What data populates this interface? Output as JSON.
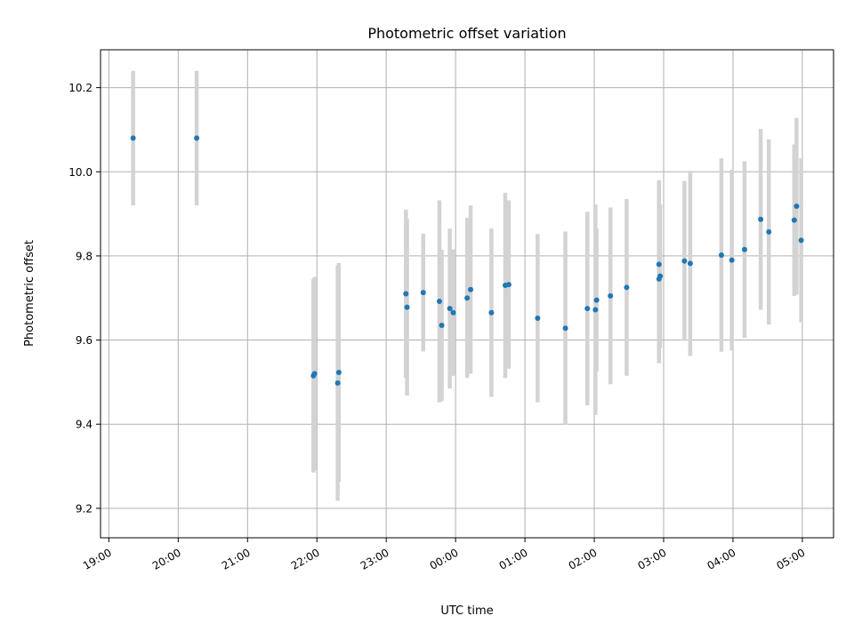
{
  "chart_data": {
    "type": "scatter",
    "title": "Photometric offset variation",
    "xlabel": "UTC time",
    "ylabel": "Photometric offset",
    "x_tick_labels": [
      "19:00",
      "20:00",
      "21:00",
      "22:00",
      "23:00",
      "00:00",
      "01:00",
      "02:00",
      "03:00",
      "04:00",
      "05:00"
    ],
    "y_ticks": [
      "9.2",
      "9.4",
      "9.6",
      "9.8",
      "10.0",
      "10.2"
    ],
    "xlim_hours": [
      18.88,
      29.45
    ],
    "ylim": [
      9.13,
      10.29
    ],
    "grid": true,
    "colors": {
      "point": "#1f77b4",
      "errorbar": "#d3d3d3",
      "grid": "#b0b0b0"
    },
    "series": [
      {
        "points": [
          {
            "t": "19:21",
            "y": 10.08,
            "err": 0.16
          },
          {
            "t": "20:16",
            "y": 10.08,
            "err": 0.16
          },
          {
            "t": "21:57",
            "y": 9.515,
            "err": 0.23
          },
          {
            "t": "21:58",
            "y": 9.52,
            "err": 0.23
          },
          {
            "t": "22:18",
            "y": 9.498,
            "err": 0.28
          },
          {
            "t": "22:19",
            "y": 9.523,
            "err": 0.26
          },
          {
            "t": "23:17",
            "y": 9.71,
            "err": 0.2
          },
          {
            "t": "23:18",
            "y": 9.678,
            "err": 0.21
          },
          {
            "t": "23:32",
            "y": 9.713,
            "err": 0.14
          },
          {
            "t": "23:46",
            "y": 9.692,
            "err": 0.24
          },
          {
            "t": "23:48",
            "y": 9.635,
            "err": 0.18
          },
          {
            "t": "23:55",
            "y": 9.675,
            "err": 0.19
          },
          {
            "t": "23:58",
            "y": 9.665,
            "err": 0.15
          },
          {
            "t": "00:10",
            "y": 9.7,
            "err": 0.19
          },
          {
            "t": "00:13",
            "y": 9.72,
            "err": 0.2
          },
          {
            "t": "00:31",
            "y": 9.665,
            "err": 0.2
          },
          {
            "t": "00:43",
            "y": 9.73,
            "err": 0.22
          },
          {
            "t": "00:46",
            "y": 9.732,
            "err": 0.2
          },
          {
            "t": "01:11",
            "y": 9.652,
            "err": 0.2
          },
          {
            "t": "01:35",
            "y": 9.628,
            "err": 0.23
          },
          {
            "t": "01:54",
            "y": 9.675,
            "err": 0.23
          },
          {
            "t": "02:01",
            "y": 9.672,
            "err": 0.25
          },
          {
            "t": "02:02",
            "y": 9.695,
            "err": 0.17
          },
          {
            "t": "02:14",
            "y": 9.705,
            "err": 0.21
          },
          {
            "t": "02:28",
            "y": 9.725,
            "err": 0.21
          },
          {
            "t": "02:56",
            "y": 9.78,
            "err": 0.2
          },
          {
            "t": "02:56",
            "y": 9.745,
            "err": 0.2
          },
          {
            "t": "02:57",
            "y": 9.752,
            "err": 0.17
          },
          {
            "t": "03:18",
            "y": 9.788,
            "err": 0.19
          },
          {
            "t": "03:23",
            "y": 9.782,
            "err": 0.22
          },
          {
            "t": "03:50",
            "y": 9.802,
            "err": 0.23
          },
          {
            "t": "03:59",
            "y": 9.79,
            "err": 0.215
          },
          {
            "t": "04:10",
            "y": 9.815,
            "err": 0.21
          },
          {
            "t": "04:24",
            "y": 9.887,
            "err": 0.215
          },
          {
            "t": "04:31",
            "y": 9.857,
            "err": 0.22
          },
          {
            "t": "04:53",
            "y": 9.885,
            "err": 0.18
          },
          {
            "t": "04:55",
            "y": 9.918,
            "err": 0.21
          },
          {
            "t": "04:59",
            "y": 9.837,
            "err": 0.195
          }
        ]
      }
    ]
  }
}
